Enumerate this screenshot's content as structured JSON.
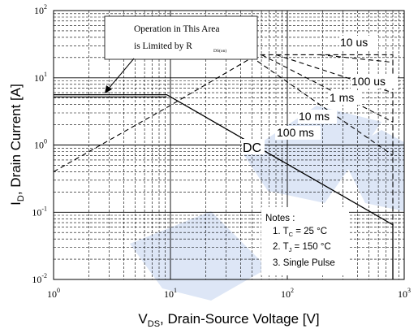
{
  "chart_data": {
    "type": "line",
    "title": "",
    "xlabel": "V",
    "xlabel_sub": "DS",
    "xlabel_rest": ", Drain-Source Voltage [V]",
    "ylabel": "I",
    "ylabel_sub": "D",
    "ylabel_rest": ", Drain Current [A]",
    "x_scale": "log",
    "y_scale": "log",
    "xlim": [
      1,
      1000
    ],
    "ylim": [
      0.01,
      100
    ],
    "grid": true,
    "x_ticks": [
      {
        "value": 1,
        "base": "10",
        "exp": "0"
      },
      {
        "value": 10,
        "base": "10",
        "exp": "1"
      },
      {
        "value": 100,
        "base": "10",
        "exp": "2"
      },
      {
        "value": 1000,
        "base": "10",
        "exp": "3"
      }
    ],
    "y_ticks": [
      {
        "value": 0.01,
        "base": "10",
        "exp": "-2"
      },
      {
        "value": 0.1,
        "base": "10",
        "exp": "-1"
      },
      {
        "value": 1,
        "base": "10",
        "exp": "0"
      },
      {
        "value": 10,
        "base": "10",
        "exp": "1"
      },
      {
        "value": 100,
        "base": "10",
        "exp": "2"
      }
    ],
    "rds_limit": {
      "x": [
        1,
        9.3
      ],
      "y": [
        5.2,
        5.2
      ]
    },
    "series": [
      {
        "name": "DC",
        "style": "solid",
        "x": [
          1,
          9.3,
          800,
          800
        ],
        "y": [
          5.6,
          5.6,
          0.065,
          0.01
        ]
      },
      {
        "name": "100 ms",
        "style": "dashed",
        "x": [
          1,
          9,
          50,
          800
        ],
        "y": [
          0.4,
          3.5,
          20,
          0.7
        ]
      },
      {
        "name": "10 ms",
        "style": "dashed",
        "x": [
          60,
          800
        ],
        "y": [
          22,
          2.2
        ]
      },
      {
        "name": "1 ms",
        "style": "dashed",
        "x": [
          80,
          800
        ],
        "y": [
          22,
          6
        ]
      },
      {
        "name": "100 us",
        "style": "dashed",
        "x": [
          190,
          800
        ],
        "y": [
          22,
          17
        ]
      },
      {
        "name": "10 us",
        "style": "dashed",
        "x": [
          50,
          800,
          800
        ],
        "y": [
          22,
          22,
          0.06
        ]
      }
    ],
    "annotation": {
      "line1": "Operation in This Area",
      "line2": "is Limited by R",
      "sub": "DS(on)"
    },
    "notes": {
      "title": "Notes :",
      "n1_pre": "1. T",
      "n1_sub": "C",
      "n1_post": " = 25 °C",
      "n2_pre": "2. T",
      "n2_sub": "J",
      "n2_post": " = 150 °C",
      "n3": "3. Single Pulse"
    },
    "colors": {
      "line": "#000000",
      "grid": "#000000",
      "watermark": "#dde6f6"
    }
  }
}
